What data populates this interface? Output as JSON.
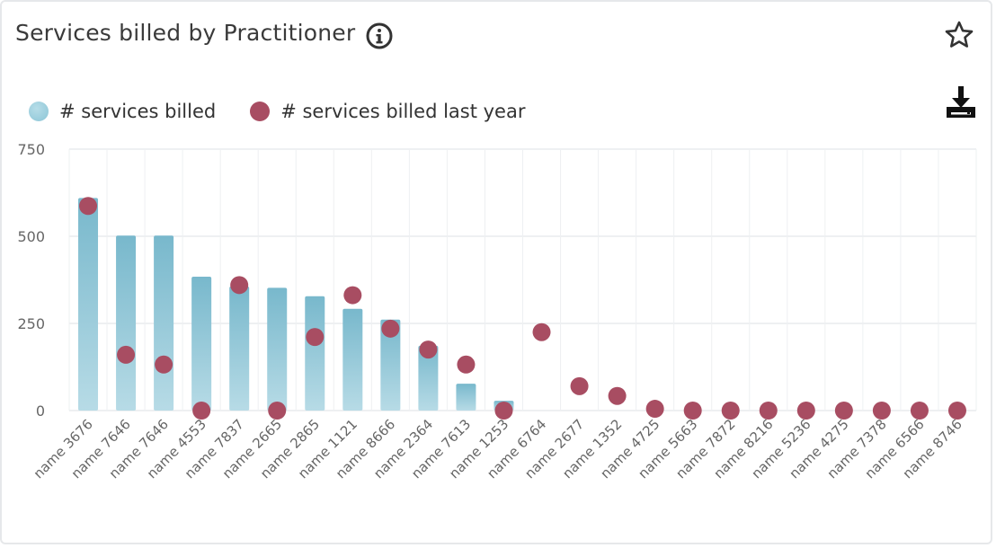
{
  "header": {
    "title": "Services billed by Practitioner"
  },
  "icons": {
    "info": "info-icon",
    "favorite": "star-icon",
    "download": "download-icon"
  },
  "legend": [
    {
      "label": "# services billed",
      "color": "#8cc5d6"
    },
    {
      "label": "# services billed last year",
      "color": "#a84d62"
    }
  ],
  "chart_data": {
    "type": "bar",
    "title": "Services billed by Practitioner",
    "xlabel": "",
    "ylabel": "",
    "ylim": [
      0,
      750
    ],
    "yticks": [
      0,
      250,
      500,
      750
    ],
    "grid": true,
    "legend_position": "top-left",
    "categories": [
      "name 3676",
      "name 7646",
      "name 7646",
      "name 4553",
      "name 7837",
      "name 2665",
      "name 2865",
      "name 1121",
      "name 8666",
      "name 2364",
      "name 7613",
      "name 1253",
      "name 6764",
      "name 2677",
      "name 1352",
      "name 4725",
      "name 5663",
      "name 7872",
      "name 8216",
      "name 5236",
      "name 4275",
      "name 7378",
      "name 6566",
      "name 8746"
    ],
    "series": [
      {
        "name": "# services billed",
        "type": "bar",
        "color": "#8cc5d6",
        "values": [
          610,
          502,
          502,
          384,
          356,
          352,
          328,
          292,
          261,
          186,
          77,
          28,
          0,
          0,
          0,
          0,
          0,
          0,
          0,
          0,
          0,
          0,
          0,
          0
        ]
      },
      {
        "name": "# services billed last year",
        "type": "scatter",
        "color": "#a84d62",
        "values": [
          587,
          160,
          132,
          0,
          360,
          0,
          211,
          331,
          235,
          175,
          132,
          0,
          225,
          70,
          42,
          5,
          0,
          0,
          0,
          0,
          0,
          0,
          0,
          0
        ]
      }
    ]
  }
}
